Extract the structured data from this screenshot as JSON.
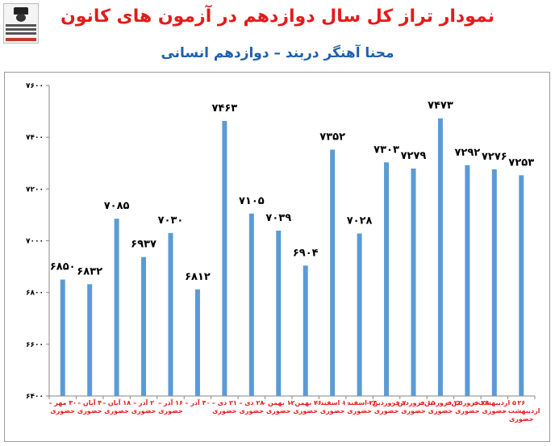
{
  "header": {
    "title": "نمودار تراز کل سال دوازدهم در آزمون های کانون",
    "subtitle": "محنا آهنگر دربند – دوازدهم انسانی"
  },
  "chart_data": {
    "type": "bar",
    "title": "نمودار تراز کل سال دوازدهم در آزمون های کانون",
    "subtitle": "محنا آهنگر دربند – دوازدهم انسانی",
    "ylim": [
      6400,
      7600
    ],
    "yticks": [
      6400,
      6600,
      6800,
      7000,
      7200,
      7400,
      7600
    ],
    "ytick_labels": [
      "۶۴۰۰",
      "۶۶۰۰",
      "۶۸۰۰",
      "۷۰۰۰",
      "۷۲۰۰",
      "۷۴۰۰",
      "۷۶۰۰"
    ],
    "grid": false,
    "bar_color": "#5b9bd5",
    "categories": [
      [
        "۳۰ مهر –",
        "حضوری"
      ],
      [
        "۴ آبان –",
        "حضوری"
      ],
      [
        "۱۸ آبان –",
        "حضوری"
      ],
      [
        "۲ آذر –",
        "حضوری"
      ],
      [
        "۱۶ آذر –",
        "حضوری"
      ],
      [
        "۳۰ آذر –",
        ""
      ],
      [
        "۲۱ دی –",
        "حضوری"
      ],
      [
        "۲۸ دی –",
        "حضوری"
      ],
      [
        "۱۲ بهمن –",
        "حضوری"
      ],
      [
        "۲۶ بهمن –",
        "حضوری"
      ],
      [
        "۱۰ اسفند –",
        "حضوری"
      ],
      [
        "۲۴ اسفند –",
        "حضوری"
      ],
      [
        "۷ فروردین –",
        "حضوری"
      ],
      [
        "۱۵ فروردین –",
        "حضوری"
      ],
      [
        "۲۲ فروردین –",
        "حضوری"
      ],
      [
        "۲۹ فروردین –",
        "حضوری"
      ],
      [
        "۵ اردیبهشت –",
        "حضوری"
      ],
      [
        "۲۶",
        "اردیبهشت –",
        "حضوری"
      ]
    ],
    "values": [
      6850,
      6832,
      7085,
      6937,
      7030,
      6812,
      7463,
      7105,
      7039,
      6904,
      7352,
      7028,
      7303,
      7279,
      7473,
      7292,
      7276,
      7253
    ],
    "value_labels": [
      "۶۸۵۰",
      "۶۸۳۲",
      "۷۰۸۵",
      "۶۹۳۷",
      "۷۰۳۰",
      "۶۸۱۲",
      "۷۴۶۳",
      "۷۱۰۵",
      "۷۰۳۹",
      "۶۹۰۴",
      "۷۳۵۲",
      "۷۰۲۸",
      "۷۳۰۳",
      "۷۲۷۹",
      "۷۴۷۳",
      "۷۲۹۲",
      "۷۲۷۶",
      "۷۲۵۳"
    ]
  }
}
